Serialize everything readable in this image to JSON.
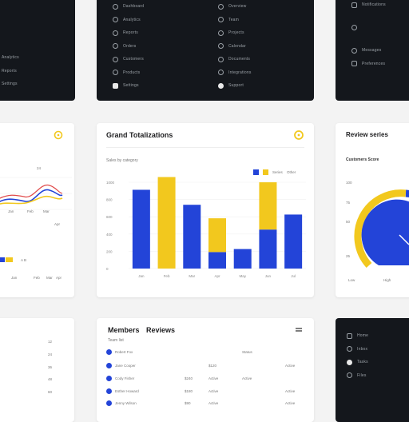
{
  "menus": {
    "left": {
      "items": [
        {
          "label": "Analytics"
        },
        {
          "label": "Reports"
        },
        {
          "label": "Settings"
        }
      ]
    },
    "top_center_col1": {
      "items": [
        {
          "label": "Dashboard"
        },
        {
          "label": "Analytics"
        },
        {
          "label": "Reports"
        },
        {
          "label": "Orders"
        },
        {
          "label": "Customers"
        },
        {
          "label": "Products"
        },
        {
          "label": "Settings"
        }
      ]
    },
    "top_center_col2": {
      "items": [
        {
          "label": "Overview"
        },
        {
          "label": "Team"
        },
        {
          "label": "Projects"
        },
        {
          "label": "Calendar"
        },
        {
          "label": "Documents"
        },
        {
          "label": "Integrations"
        },
        {
          "label": "Support"
        }
      ]
    },
    "top_right": {
      "items": [
        {
          "label": "Notifications"
        },
        {
          "label": ""
        },
        {
          "label": "Messages"
        },
        {
          "label": "Preferences"
        }
      ]
    },
    "bottom_right": {
      "items": [
        {
          "label": "Home"
        },
        {
          "label": "Inbox"
        },
        {
          "label": "Tasks"
        },
        {
          "label": "Files"
        }
      ]
    }
  },
  "left_chart": {
    "label": "24",
    "legend_a": "A",
    "legend_b": "B",
    "x_ticks": [
      "Jan",
      "Feb",
      "Mar",
      "Apr"
    ]
  },
  "grand_chart": {
    "title": "Grand Totalizations",
    "subtitle": "Sales by category",
    "legend": [
      "Series",
      "Other"
    ],
    "colors": {
      "blue": "#2344d8",
      "yellow": "#f2c81e"
    }
  },
  "chart_data": {
    "type": "bar",
    "title": "Grand Totalizations",
    "categories": [
      "Jan",
      "Feb",
      "Mar",
      "Apr",
      "May",
      "Jun",
      "Jul"
    ],
    "series": [
      {
        "name": "Series",
        "values": [
          105,
          0,
          85,
          22,
          26,
          52,
          72
        ]
      },
      {
        "name": "Other",
        "values": [
          0,
          122,
          0,
          45,
          0,
          63,
          0
        ]
      }
    ],
    "y_ticks": [
      "1000",
      "800",
      "600",
      "400",
      "200",
      "0"
    ],
    "ylim": [
      0,
      130
    ],
    "grid": true,
    "legend_position": "top-right"
  },
  "review": {
    "title": "Review series",
    "subtitle": "Customers Score",
    "y_ticks": [
      "100",
      "75",
      "50",
      "25"
    ],
    "x_ticks": [
      "Low",
      "High"
    ]
  },
  "table": {
    "title": "Members",
    "title2": "Reviews",
    "subtitle": "Team list",
    "rows": [
      {
        "name": "Robert Fox",
        "c1": "",
        "c2": "",
        "c3": "Status"
      },
      {
        "name": "Jane Cooper",
        "c1": "$120",
        "c2": "Active",
        "c3": "Active"
      },
      {
        "name": "Cody Fisher",
        "c1": "$240",
        "c2": "Active",
        "c3": "Active"
      },
      {
        "name": "Esther Howard",
        "c1": "$180",
        "c2": "Active",
        "c3": "Active"
      },
      {
        "name": "Jenny Wilson",
        "c1": "$90",
        "c2": "Active",
        "c3": "Active"
      }
    ]
  },
  "left_values": [
    "12",
    "24",
    "36",
    "48",
    "60"
  ]
}
